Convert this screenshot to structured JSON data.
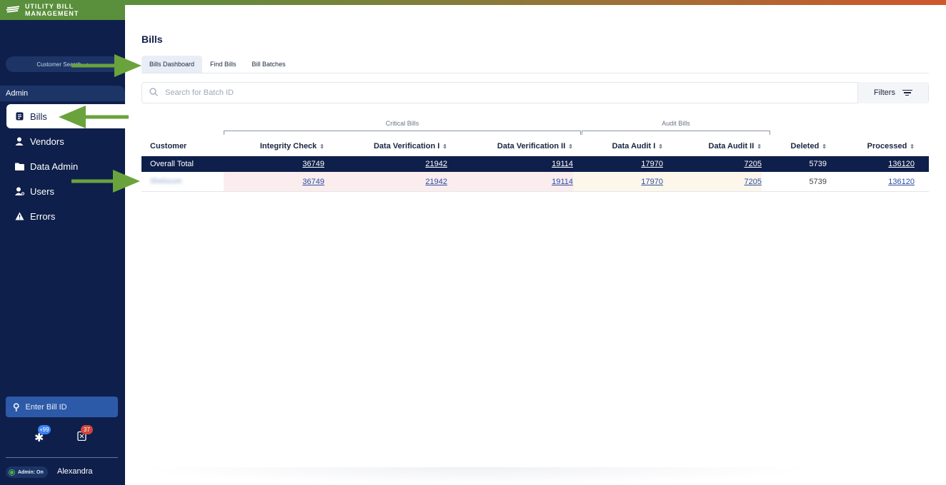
{
  "brand": {
    "title": "UTILITY BILL MANAGEMENT"
  },
  "sidebar": {
    "customer_search_placeholder": "Customer Search",
    "section_label": "Admin",
    "items": [
      {
        "label": "Bills",
        "icon": "document-icon",
        "active": true
      },
      {
        "label": "Vendors",
        "icon": "person-icon",
        "active": false
      },
      {
        "label": "Data Admin",
        "icon": "folder-icon",
        "active": false
      },
      {
        "label": "Users",
        "icon": "users-icon",
        "active": false
      },
      {
        "label": "Errors",
        "icon": "warning-icon",
        "active": false
      }
    ],
    "bill_id_placeholder": "Enter Bill ID",
    "notifications": [
      {
        "icon": "asterisk-icon",
        "badge": "+99",
        "color": "#3b82f6"
      },
      {
        "icon": "clipboard-icon",
        "badge": "37",
        "color": "#d0453a"
      }
    ],
    "admin_status": "Admin: On",
    "user_name": "Alexandra"
  },
  "main": {
    "title": "Bills",
    "tabs": [
      {
        "label": "Bills Dashboard",
        "active": true
      },
      {
        "label": "Find Bills",
        "active": false
      },
      {
        "label": "Bill Batches",
        "active": false
      }
    ],
    "search_placeholder": "Search for Batch ID",
    "filters_label": "Filters",
    "groups": {
      "critical": "Critical Bills",
      "audit": "Audit Bills"
    },
    "table": {
      "headers": [
        "Customer",
        "Integrity Check",
        "Data Verification I",
        "Data Verification II",
        "Data Audit I",
        "Data Audit II",
        "Deleted",
        "Processed"
      ],
      "sort_glyph": "⇕",
      "rows": [
        {
          "customer": "Overall Total",
          "values": [
            "36749",
            "21942",
            "19114",
            "17970",
            "7205",
            "5739",
            "136120"
          ]
        },
        {
          "customer": "Shelxxure",
          "values": [
            "36749",
            "21942",
            "19114",
            "17970",
            "7205",
            "5739",
            "136120"
          ]
        }
      ]
    }
  },
  "colors": {
    "sidebar": "#0f1f4b",
    "brand": "#5a8f3c",
    "accent_blue": "#2d5aa8",
    "arrow": "#6aa33c"
  }
}
